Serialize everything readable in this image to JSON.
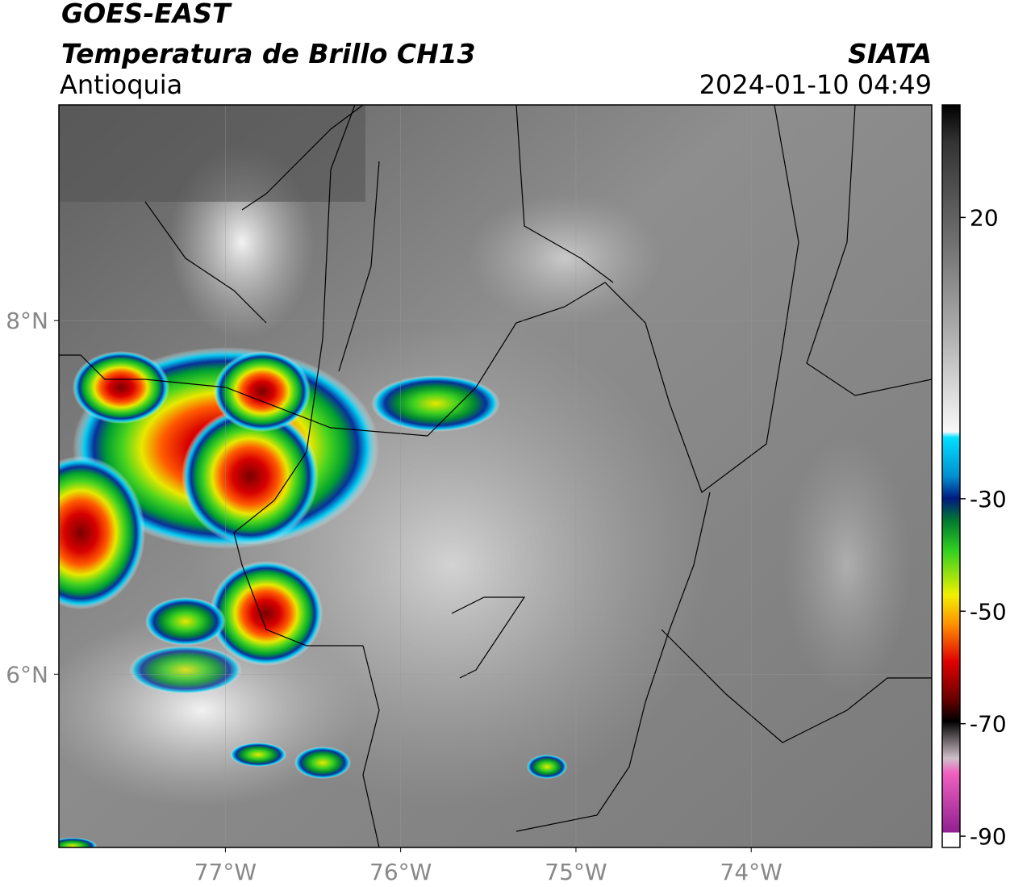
{
  "header": {
    "title": "GOES-EAST",
    "subtitle": "Temperatura de Brillo CH13",
    "region": "Antioquia",
    "source": "SIATA",
    "datetime": "2024-01-10 04:49"
  },
  "map": {
    "xlim": [
      -77.95,
      -72.97
    ],
    "ylim": [
      5.02,
      9.22
    ],
    "xticks": [
      {
        "value": -77,
        "label": "77°W"
      },
      {
        "value": -76,
        "label": "76°W"
      },
      {
        "value": -75,
        "label": "75°W"
      },
      {
        "value": -74,
        "label": "74°W"
      }
    ],
    "yticks": [
      {
        "value": 8,
        "label": "8°N"
      },
      {
        "value": 6,
        "label": "6°N"
      }
    ],
    "grid": true
  },
  "colorbar": {
    "lim": [
      -92,
      40
    ],
    "ticks": [
      20,
      -30,
      -50,
      -70,
      -90
    ]
  }
}
